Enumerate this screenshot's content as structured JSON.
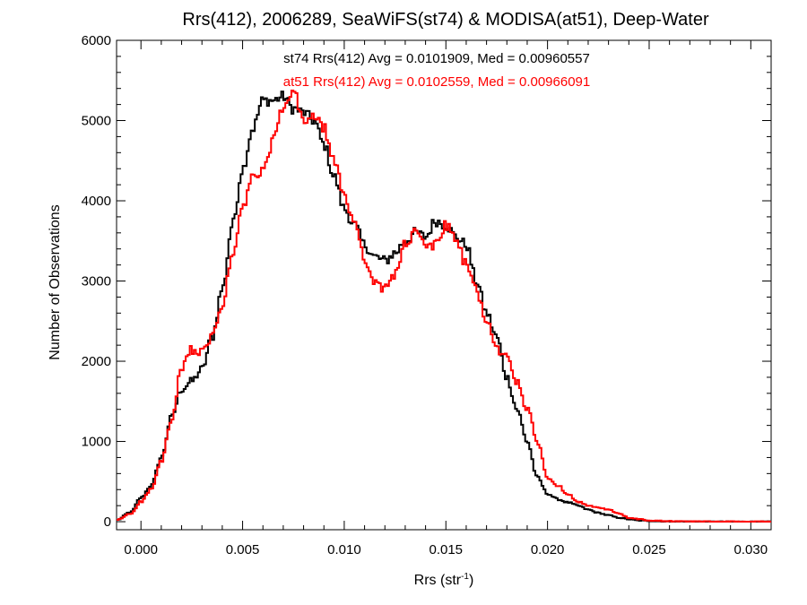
{
  "chart_data": {
    "type": "line",
    "title": "Rrs(412), 2006289, SeaWiFS(st74) & MODISA(at51), Deep-Water",
    "xlabel_main": "Rrs (str",
    "xlabel_sup": "-1",
    "xlabel_close": ")",
    "ylabel": "Number of Observations",
    "xlim": [
      -0.0012,
      0.031
    ],
    "ylim": [
      -100,
      6000
    ],
    "xticks": [
      "0.000",
      "0.005",
      "0.010",
      "0.015",
      "0.020",
      "0.025",
      "0.030"
    ],
    "yticks": [
      "0",
      "1000",
      "2000",
      "3000",
      "4000",
      "5000",
      "6000"
    ],
    "colors": {
      "st74": "#000000",
      "at51": "#ff0000"
    },
    "annotations": [
      {
        "text": "st74 Rrs(412) Avg = 0.0101909, Med = 0.00960557",
        "color": "#000000"
      },
      {
        "text": "at51 Rrs(412) Avg = 0.0102559, Med = 0.00966091",
        "color": "#ff0000"
      }
    ],
    "series": [
      {
        "key": "st74",
        "x": [
          -0.0012,
          -0.0005,
          0.0,
          0.0005,
          0.001,
          0.0015,
          0.002,
          0.0025,
          0.003,
          0.0035,
          0.004,
          0.0045,
          0.005,
          0.0055,
          0.006,
          0.0065,
          0.007,
          0.0075,
          0.008,
          0.0085,
          0.009,
          0.0095,
          0.01,
          0.0105,
          0.011,
          0.0115,
          0.012,
          0.0125,
          0.013,
          0.0135,
          0.014,
          0.0145,
          0.015,
          0.0155,
          0.016,
          0.0165,
          0.017,
          0.0175,
          0.018,
          0.0185,
          0.019,
          0.0195,
          0.02,
          0.0205,
          0.021,
          0.0215,
          0.022,
          0.0225,
          0.023,
          0.0235,
          0.024,
          0.0245,
          0.025,
          0.0255,
          0.026,
          0.027,
          0.028,
          0.029,
          0.03,
          0.031
        ],
        "values": [
          20,
          120,
          300,
          450,
          800,
          1300,
          1650,
          1750,
          1900,
          2300,
          2900,
          3700,
          4400,
          4900,
          5250,
          5250,
          5300,
          5150,
          5100,
          5000,
          4700,
          4300,
          3900,
          3700,
          3450,
          3300,
          3250,
          3350,
          3500,
          3600,
          3550,
          3750,
          3700,
          3550,
          3450,
          3000,
          2600,
          2300,
          1800,
          1400,
          1000,
          550,
          350,
          280,
          240,
          200,
          150,
          110,
          80,
          50,
          30,
          15,
          10,
          5,
          3,
          2,
          1,
          0,
          0,
          0
        ]
      },
      {
        "key": "at51",
        "x": [
          -0.0012,
          -0.0005,
          0.0,
          0.0005,
          0.001,
          0.0015,
          0.002,
          0.0025,
          0.003,
          0.0035,
          0.004,
          0.0045,
          0.005,
          0.0055,
          0.006,
          0.0065,
          0.007,
          0.0075,
          0.008,
          0.0085,
          0.009,
          0.0095,
          0.01,
          0.0105,
          0.011,
          0.0115,
          0.012,
          0.0125,
          0.013,
          0.0135,
          0.014,
          0.0145,
          0.015,
          0.0155,
          0.016,
          0.0165,
          0.017,
          0.0175,
          0.018,
          0.0185,
          0.019,
          0.0195,
          0.02,
          0.0205,
          0.021,
          0.0215,
          0.022,
          0.0225,
          0.023,
          0.0235,
          0.024,
          0.0245,
          0.025,
          0.0255,
          0.026,
          0.027,
          0.028,
          0.029,
          0.03,
          0.031
        ],
        "values": [
          20,
          100,
          250,
          400,
          750,
          1250,
          1900,
          2150,
          2100,
          2300,
          2700,
          3300,
          3900,
          4300,
          4350,
          4750,
          5150,
          5350,
          5000,
          5050,
          4900,
          4500,
          4050,
          3750,
          3300,
          2950,
          2900,
          3100,
          3450,
          3600,
          3450,
          3450,
          3700,
          3500,
          3200,
          2900,
          2500,
          2150,
          2050,
          1750,
          1400,
          1000,
          550,
          450,
          350,
          250,
          200,
          170,
          150,
          100,
          50,
          30,
          15,
          10,
          5,
          3,
          2,
          1,
          0,
          0
        ]
      }
    ]
  }
}
